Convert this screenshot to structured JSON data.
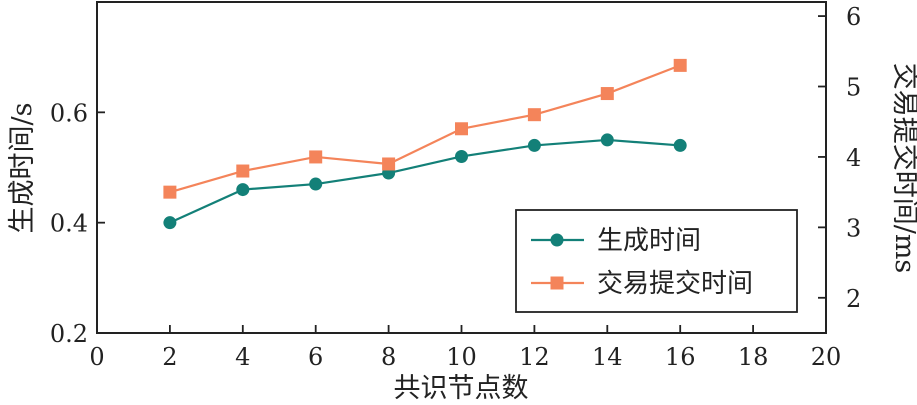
{
  "chart_data": {
    "type": "line",
    "xlabel": "共识节点数",
    "ylabel": "生成时间/s",
    "y2label": "交易提交时间/ms",
    "xlim": [
      0,
      20
    ],
    "ylim": [
      0.2,
      0.8
    ],
    "y2lim": [
      1.5,
      6.2
    ],
    "xticks": [
      "0",
      "2",
      "4",
      "6",
      "8",
      "10",
      "12",
      "14",
      "16",
      "18",
      "20"
    ],
    "yticks": [
      "0.2",
      "0.4",
      "0.6"
    ],
    "y2ticks": [
      "2",
      "3",
      "4",
      "5",
      "6"
    ],
    "grid": false,
    "legend": "lower-right",
    "series": [
      {
        "name": "生成时间",
        "axis": "left",
        "color": "#138078",
        "marker": "circle",
        "x": [
          2,
          4,
          6,
          8,
          10,
          12,
          14,
          16
        ],
        "y": [
          0.4,
          0.46,
          0.47,
          0.49,
          0.52,
          0.54,
          0.55,
          0.54
        ]
      },
      {
        "name": "交易提交时间",
        "axis": "right",
        "color": "#F4845A",
        "marker": "square",
        "x": [
          2,
          4,
          6,
          8,
          10,
          12,
          14,
          16
        ],
        "y": [
          3.5,
          3.8,
          4.0,
          3.9,
          4.4,
          4.6,
          4.9,
          5.3
        ]
      }
    ]
  }
}
